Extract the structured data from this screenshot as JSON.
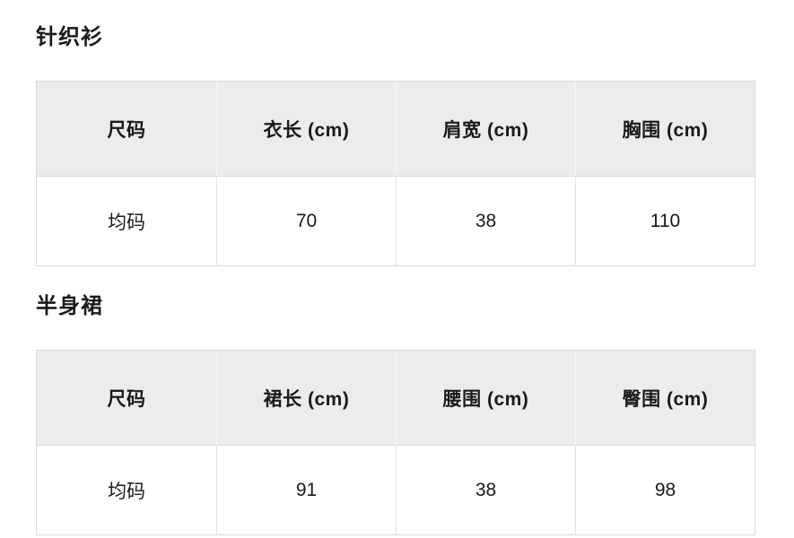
{
  "colors": {
    "header_bg": "#ececec",
    "border": "#d9d9d9",
    "text": "#1a1a1a"
  },
  "sections": [
    {
      "title": "针织衫",
      "table": {
        "headers": [
          "尺码",
          "衣长 (cm)",
          "肩宽 (cm)",
          "胸围 (cm)"
        ],
        "rows": [
          [
            "均码",
            "70",
            "38",
            "110"
          ]
        ]
      }
    },
    {
      "title": "半身裙",
      "table": {
        "headers": [
          "尺码",
          "裙长 (cm)",
          "腰围 (cm)",
          "臀围 (cm)"
        ],
        "rows": [
          [
            "均码",
            "91",
            "38",
            "98"
          ]
        ]
      }
    }
  ]
}
